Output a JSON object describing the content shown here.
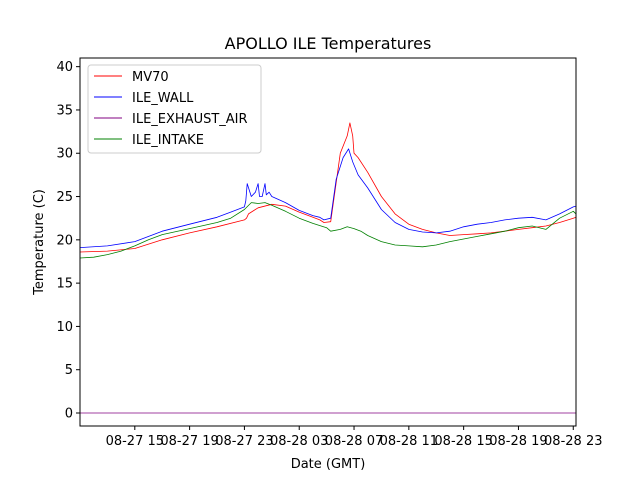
{
  "chart_data": {
    "type": "line",
    "title": "APOLLO ILE Temperatures",
    "xlabel": "Date (GMT)",
    "ylabel": "Temperature (C)",
    "x_unit": "hours since 08-27 11:00 GMT",
    "xlim": [
      0,
      36.2
    ],
    "ylim": [
      -1.5,
      41
    ],
    "yticks": [
      0,
      5,
      10,
      15,
      20,
      25,
      30,
      35,
      40
    ],
    "xticks": [
      {
        "value": 4,
        "label": "08-27 15"
      },
      {
        "value": 8,
        "label": "08-27 19"
      },
      {
        "value": 12,
        "label": "08-27 23"
      },
      {
        "value": 16,
        "label": "08-28 03"
      },
      {
        "value": 20,
        "label": "08-28 07"
      },
      {
        "value": 24,
        "label": "08-28 11"
      },
      {
        "value": 28,
        "label": "08-28 15"
      },
      {
        "value": 32,
        "label": "08-28 19"
      },
      {
        "value": 36,
        "label": "08-28 23"
      }
    ],
    "legend_position": "upper-left",
    "series": [
      {
        "name": "MV70",
        "color": "#ff0000",
        "x": [
          0,
          2,
          4,
          6,
          8,
          10,
          12,
          12.15,
          12.3,
          13,
          14,
          15,
          16,
          17,
          17.5,
          17.8,
          18.3,
          19,
          19.5,
          19.7,
          19.9,
          20,
          20.3,
          21,
          22,
          23,
          24,
          25,
          26,
          27,
          28,
          29,
          30,
          31,
          32,
          33,
          34,
          35,
          36,
          36.2
        ],
        "y": [
          18.6,
          18.7,
          19.0,
          20.0,
          20.8,
          21.5,
          22.3,
          22.5,
          23.0,
          23.7,
          24.1,
          23.9,
          23.2,
          22.6,
          22.3,
          22.0,
          22.1,
          30.0,
          32.0,
          33.5,
          32.0,
          30.0,
          29.5,
          27.8,
          25.0,
          23.0,
          21.8,
          21.2,
          20.8,
          20.5,
          20.6,
          20.7,
          20.8,
          21.0,
          21.2,
          21.4,
          21.6,
          22.0,
          22.5,
          22.6
        ]
      },
      {
        "name": "ILE_WALL",
        "color": "#0000ff",
        "x": [
          0,
          2,
          4,
          6,
          8,
          10,
          11,
          12,
          12.1,
          12.2,
          12.5,
          12.8,
          13,
          13.1,
          13.3,
          13.5,
          13.6,
          13.8,
          14,
          15,
          16,
          17,
          17.5,
          17.8,
          18.3,
          18.7,
          19.2,
          19.6,
          19.9,
          20.3,
          21,
          22,
          23,
          24,
          25,
          26,
          27,
          28,
          29,
          30,
          31,
          32,
          33,
          34,
          35,
          36,
          36.2
        ],
        "y": [
          19.1,
          19.3,
          19.8,
          21.0,
          21.8,
          22.6,
          23.2,
          23.8,
          24.5,
          26.5,
          25.0,
          25.5,
          26.5,
          25.0,
          25.0,
          26.5,
          25.2,
          25.5,
          25.0,
          24.3,
          23.4,
          22.8,
          22.6,
          22.3,
          22.5,
          27.0,
          29.5,
          30.5,
          29.0,
          27.5,
          26.0,
          23.5,
          22.0,
          21.2,
          20.9,
          20.8,
          21.0,
          21.5,
          21.8,
          22.0,
          22.3,
          22.5,
          22.6,
          22.3,
          23.0,
          23.8,
          23.9
        ]
      },
      {
        "name": "ILE_EXHAUST_AIR",
        "color": "#800080",
        "x": [
          0,
          36.2
        ],
        "y": [
          0,
          0
        ]
      },
      {
        "name": "ILE_INTAKE",
        "color": "#008000",
        "x": [
          0,
          1,
          2,
          3,
          4,
          5,
          6,
          8,
          10,
          11,
          12,
          12.5,
          13,
          13.5,
          14,
          15,
          16,
          17,
          18,
          18.3,
          19,
          19.5,
          20,
          20.5,
          21,
          22,
          23,
          24,
          25,
          26,
          27,
          28,
          29,
          30,
          31,
          32,
          33,
          34,
          35,
          36,
          36.2
        ],
        "y": [
          17.9,
          18.0,
          18.3,
          18.7,
          19.3,
          20.0,
          20.6,
          21.3,
          22.0,
          22.5,
          23.5,
          24.3,
          24.2,
          24.3,
          24.0,
          23.3,
          22.5,
          21.9,
          21.4,
          21.0,
          21.2,
          21.5,
          21.3,
          21.0,
          20.5,
          19.8,
          19.4,
          19.3,
          19.2,
          19.4,
          19.8,
          20.1,
          20.4,
          20.7,
          21.0,
          21.4,
          21.6,
          21.2,
          22.5,
          23.3,
          23.0
        ]
      }
    ]
  }
}
